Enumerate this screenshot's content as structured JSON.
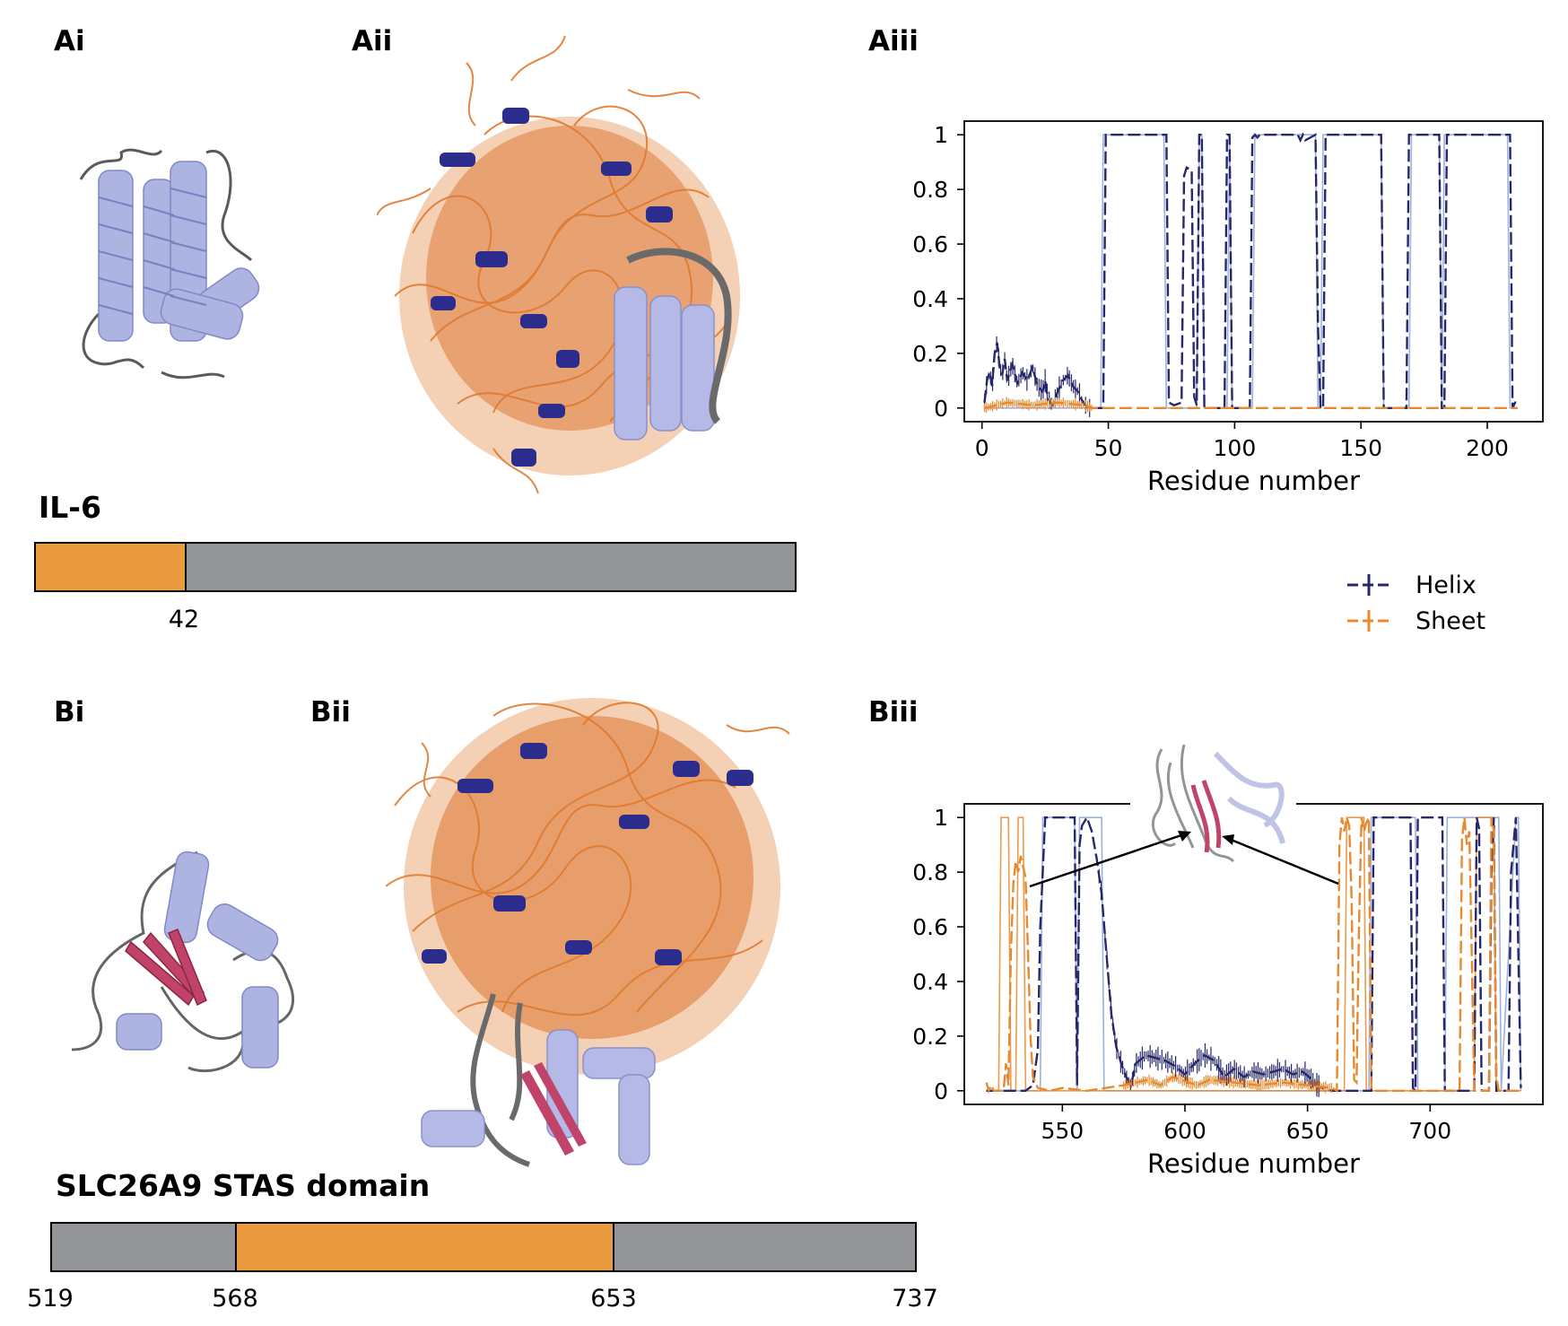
{
  "panels": {
    "ai": "Ai",
    "aii": "Aii",
    "aiii": "Aiii",
    "bi": "Bi",
    "bii": "Bii",
    "biii": "Biii"
  },
  "proteins": {
    "a": {
      "name": "IL-6",
      "ticks": [
        "42"
      ],
      "segments": [
        {
          "type": "disordered",
          "from": 0,
          "to": 42
        },
        {
          "type": "ordered",
          "from": 42,
          "to": 212
        }
      ]
    },
    "b": {
      "name": "SLC26A9 STAS domain",
      "ticks": [
        "519",
        "568",
        "653",
        "737"
      ],
      "segments": [
        {
          "type": "ordered",
          "from": 519,
          "to": 568
        },
        {
          "type": "disordered",
          "from": 568,
          "to": 653
        },
        {
          "type": "ordered",
          "from": 653,
          "to": 737
        }
      ]
    }
  },
  "colors": {
    "helix": "#27286b",
    "sheet": "#e8892f",
    "ref": "#8da2d6",
    "disordered_bar": "#ea9a3f",
    "ordered_bar": "#939598"
  },
  "legend": {
    "helix": "Helix",
    "sheet": "Sheet"
  },
  "chart_data": [
    {
      "id": "Aiii",
      "type": "line",
      "xlabel": "Residue number",
      "ylabel": "",
      "xlim": [
        -7,
        222
      ],
      "ylim": [
        -0.05,
        1.05
      ],
      "xticks": [
        0,
        50,
        100,
        150,
        200
      ],
      "yticks": [
        0,
        0.2,
        0.4,
        0.6,
        0.8,
        1
      ],
      "ytick_labels": [
        "0",
        "0.2",
        "0.4",
        "0.6",
        "0.8",
        "1"
      ],
      "series": [
        {
          "name": "Helix",
          "style": "dashed",
          "noisy": [
            1,
            43
          ],
          "x": [
            1,
            2,
            3,
            4,
            5,
            6,
            7,
            8,
            9,
            10,
            12,
            14,
            16,
            18,
            20,
            22,
            24,
            25,
            26,
            27,
            28,
            30,
            32,
            34,
            36,
            38,
            40,
            41,
            42,
            43,
            45,
            47,
            48,
            49,
            73,
            74,
            76,
            79,
            80,
            81,
            83,
            84,
            85,
            86,
            87,
            88,
            96,
            97,
            98,
            99,
            106,
            107,
            108,
            109,
            110,
            125,
            126,
            127,
            128,
            132,
            133,
            134,
            135,
            136,
            137,
            138,
            158,
            159,
            168,
            169,
            170,
            181,
            182,
            183,
            184,
            209,
            210,
            211,
            212
          ],
          "y": [
            0.02,
            0.1,
            0.13,
            0.08,
            0.2,
            0.24,
            0.15,
            0.12,
            0.18,
            0.1,
            0.16,
            0.09,
            0.13,
            0.1,
            0.15,
            0.08,
            0.06,
            0.1,
            0.04,
            0.02,
            0.01,
            0.06,
            0.1,
            0.12,
            0.08,
            0.06,
            0.02,
            0.01,
            0.0,
            0.0,
            0.0,
            0.0,
            0.0,
            1.0,
            1.0,
            0.02,
            0.01,
            0.02,
            0.85,
            0.88,
            0.87,
            0.04,
            0.01,
            1.0,
            1.0,
            0.0,
            0.0,
            1.0,
            1.0,
            0.0,
            0.0,
            0.99,
            1.0,
            0.99,
            1.0,
            1.0,
            0.98,
            1.0,
            0.98,
            1.0,
            0.3,
            0.0,
            0.0,
            1.0,
            1.0,
            1.0,
            1.0,
            0.0,
            0.0,
            1.0,
            1.0,
            1.0,
            0.0,
            0.0,
            1.0,
            1.0,
            0.0,
            0.02,
            0.02
          ]
        },
        {
          "name": "Sheet",
          "style": "dashed",
          "noisy": [
            1,
            44
          ],
          "x": [
            1,
            10,
            20,
            30,
            40,
            44,
            45,
            212
          ],
          "y": [
            0.0,
            0.02,
            0.01,
            0.02,
            0.01,
            0.0,
            0.0,
            0.0
          ]
        },
        {
          "name": "Reference helix",
          "style": "solid",
          "x": [
            1,
            47,
            48,
            72,
            73,
            85,
            86,
            87,
            88,
            97,
            98,
            99,
            107,
            108,
            132,
            133,
            134,
            135,
            158,
            159,
            169,
            170,
            181,
            182,
            183,
            208,
            209,
            212
          ],
          "y": [
            0,
            0,
            1,
            1,
            0,
            0,
            1,
            1,
            0,
            0,
            1,
            0,
            0,
            1,
            1,
            0,
            0,
            1,
            1,
            0,
            0,
            1,
            1,
            0,
            1,
            1,
            0,
            0
          ]
        }
      ]
    },
    {
      "id": "Biii",
      "type": "line",
      "xlabel": "Residue number",
      "ylabel": "",
      "xlim": [
        510,
        746
      ],
      "ylim": [
        -0.05,
        1.05
      ],
      "xticks": [
        550,
        600,
        650,
        700
      ],
      "yticks": [
        0,
        0.2,
        0.4,
        0.6,
        0.8,
        1
      ],
      "ytick_labels": [
        "0",
        "0.2",
        "0.4",
        "0.6",
        "0.8",
        "1"
      ],
      "series": [
        {
          "name": "Helix",
          "style": "dashed",
          "noisy": [
            565,
            655
          ],
          "x": [
            519,
            535,
            538,
            540,
            541,
            543,
            544,
            555,
            556,
            557,
            558,
            560,
            562,
            564,
            566,
            568,
            570,
            572,
            574,
            576,
            578,
            580,
            584,
            588,
            592,
            596,
            600,
            604,
            608,
            612,
            616,
            620,
            624,
            628,
            632,
            636,
            640,
            644,
            648,
            652,
            654,
            656,
            660,
            664,
            667,
            668,
            674,
            676,
            677,
            692,
            693,
            694,
            695,
            705,
            706,
            707,
            710,
            716,
            718,
            719,
            720,
            721,
            724,
            725,
            726,
            727,
            730,
            732,
            733,
            735,
            737
          ],
          "y": [
            0,
            0,
            0.02,
            0.15,
            0.6,
            1.0,
            1.0,
            1.0,
            0.02,
            0.9,
            0.97,
            1.0,
            0.95,
            0.85,
            0.72,
            0.5,
            0.28,
            0.16,
            0.1,
            0.05,
            0.02,
            0.1,
            0.13,
            0.12,
            0.11,
            0.09,
            0.06,
            0.1,
            0.13,
            0.11,
            0.05,
            0.08,
            0.05,
            0.07,
            0.06,
            0.07,
            0.08,
            0.06,
            0.07,
            0.04,
            0.02,
            0.01,
            0.0,
            0.0,
            0.0,
            0.0,
            0.0,
            0.0,
            1.0,
            1.0,
            0.01,
            0.0,
            1.0,
            1.0,
            0.0,
            0.0,
            0.0,
            0.0,
            0.0,
            1.0,
            0.96,
            0.0,
            0.0,
            0.8,
            1.0,
            0.0,
            0.0,
            0.0,
            0.8,
            1.0,
            0.01
          ]
        },
        {
          "name": "Sheet",
          "style": "dashed",
          "noisy": [
            575,
            660
          ],
          "x": [
            519,
            520,
            521,
            522,
            526,
            527,
            528,
            529,
            530,
            531,
            532,
            533,
            534,
            535,
            536,
            537,
            538,
            540,
            545,
            550,
            560,
            575,
            585,
            590,
            595,
            605,
            610,
            620,
            630,
            640,
            650,
            660,
            662,
            663,
            664,
            665,
            666,
            667,
            668,
            669,
            670,
            671,
            672,
            673,
            674,
            675,
            676,
            677,
            680,
            690,
            712,
            713,
            714,
            715,
            716,
            717,
            718,
            719,
            724,
            725,
            726,
            727,
            728,
            737
          ],
          "y": [
            0.03,
            0,
            0.02,
            0,
            0,
            0.1,
            0.02,
            0.5,
            0.76,
            0.84,
            0.8,
            0.86,
            0.82,
            0.78,
            0.5,
            0.2,
            0.05,
            0.01,
            0,
            0.01,
            0,
            0.02,
            0.04,
            0.02,
            0.05,
            0.02,
            0.04,
            0.03,
            0.02,
            0.03,
            0.02,
            0.01,
            0.0,
            0.9,
            1.0,
            0.95,
            1.0,
            0.97,
            0.7,
            0.04,
            0.03,
            0.6,
            1.0,
            0.95,
            0.98,
            1.0,
            0.01,
            0.0,
            0.0,
            0.0,
            0.0,
            0.92,
            1.0,
            0.9,
            0.95,
            0.5,
            0.0,
            0.0,
            0.0,
            1.0,
            0.95,
            0.05,
            0.0,
            0.0
          ]
        },
        {
          "name": "Reference helix",
          "style": "solid",
          "x": [
            519,
            541,
            542,
            555,
            556,
            557,
            566,
            567,
            675,
            676,
            694,
            695,
            706,
            707,
            728,
            729,
            735,
            736,
            737
          ],
          "y": [
            0,
            0,
            1,
            1,
            0,
            1,
            1,
            0,
            0,
            1,
            1,
            0,
            0,
            1,
            1,
            0,
            1,
            1,
            0
          ]
        },
        {
          "name": "Reference sheet",
          "style": "solid",
          "x": [
            519,
            524,
            525,
            528,
            529,
            531,
            532,
            534,
            535,
            665,
            666,
            673,
            674,
            718,
            719,
            726,
            727,
            737
          ],
          "y": [
            0,
            0,
            1,
            1,
            0,
            0,
            1,
            1,
            0,
            0,
            1,
            1,
            0,
            0,
            1,
            1,
            0,
            0
          ]
        }
      ]
    }
  ]
}
